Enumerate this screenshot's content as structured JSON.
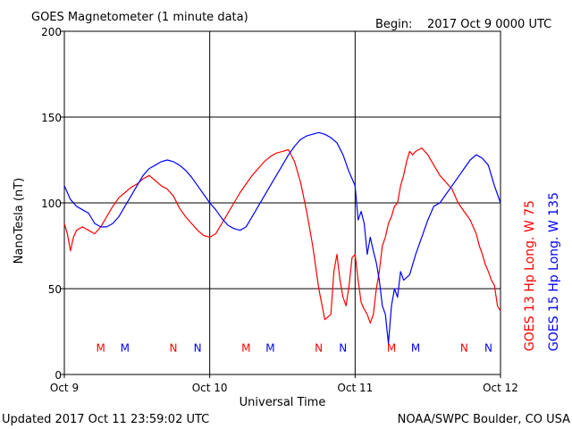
{
  "header": {
    "title": "GOES Magnetometer (1 minute data)",
    "begin_label": "Begin:",
    "begin_value": "2017 Oct 9 0000 UTC"
  },
  "footer": {
    "updated": "Updated 2017 Oct 11 23:59:02 UTC",
    "credit": "NOAA/SWPC Boulder, CO USA"
  },
  "chart_data": {
    "type": "line",
    "title": "GOES Magnetometer (1 minute data)",
    "xlabel": "Universal Time",
    "ylabel": "NanoTesla (nT)",
    "xlim": [
      0,
      72
    ],
    "ylim": [
      0,
      200
    ],
    "x_unit": "hours since 2017 Oct 9 0000 UTC",
    "x_ticks": [
      {
        "x": 0,
        "label": "Oct 9"
      },
      {
        "x": 24,
        "label": "Oct 10"
      },
      {
        "x": 48,
        "label": "Oct 11"
      },
      {
        "x": 72,
        "label": "Oct 12"
      }
    ],
    "y_ticks": [
      0,
      50,
      100,
      150,
      200
    ],
    "grid": true,
    "colors": {
      "goes13": "#ff0000",
      "goes15": "#0000ff",
      "grid": "#000000"
    },
    "series": [
      {
        "name": "GOES 13 Hp Long. W 75",
        "color": "#ff0000",
        "x": [
          0,
          0.5,
          1,
          1.5,
          2,
          3,
          4,
          5,
          6,
          7,
          8,
          9,
          10,
          11,
          12,
          13,
          14,
          15,
          16,
          17,
          18,
          19,
          20,
          21,
          22,
          23,
          24,
          25,
          26,
          27,
          28,
          29,
          30,
          31,
          32,
          33,
          34,
          35,
          36,
          37,
          38,
          39,
          40,
          41,
          42,
          43,
          44,
          44.5,
          45,
          45.5,
          46,
          46.5,
          47,
          47.5,
          48,
          48.5,
          49,
          49.5,
          50,
          50.5,
          51,
          51.5,
          52,
          52.5,
          53,
          53.5,
          54,
          54.5,
          55,
          55.5,
          56,
          56.5,
          57,
          57.5,
          58,
          59,
          60,
          61,
          62,
          63,
          64,
          65,
          66,
          67,
          68,
          68.5,
          69,
          69.5,
          70,
          70.5,
          71,
          71.5,
          72
        ],
        "y": [
          88,
          82,
          72,
          80,
          84,
          86,
          84,
          82,
          86,
          92,
          98,
          103,
          106,
          109,
          111,
          114,
          116,
          113,
          110,
          108,
          104,
          97,
          92,
          88,
          84,
          81,
          80,
          82,
          88,
          94,
          100,
          106,
          111,
          116,
          120,
          124,
          127,
          129,
          130,
          131,
          124,
          112,
          95,
          75,
          50,
          32,
          35,
          60,
          70,
          55,
          45,
          40,
          52,
          68,
          70,
          55,
          42,
          38,
          35,
          30,
          35,
          50,
          60,
          75,
          80,
          88,
          92,
          98,
          100,
          110,
          116,
          124,
          130,
          128,
          130,
          132,
          128,
          122,
          116,
          112,
          108,
          100,
          95,
          90,
          82,
          75,
          70,
          64,
          60,
          55,
          52,
          40,
          37
        ],
        "marker_labels": [
          {
            "x": 6,
            "label": "M"
          },
          {
            "x": 18,
            "label": "N"
          },
          {
            "x": 30,
            "label": "M"
          },
          {
            "x": 42,
            "label": "N"
          },
          {
            "x": 54,
            "label": "M"
          },
          {
            "x": 66,
            "label": "N"
          }
        ]
      },
      {
        "name": "GOES 15 Hp Long. W 135",
        "color": "#0000ff",
        "x": [
          0,
          1,
          2,
          3,
          4,
          5,
          6,
          7,
          8,
          9,
          10,
          11,
          12,
          13,
          14,
          15,
          16,
          17,
          18,
          19,
          20,
          21,
          22,
          23,
          24,
          25,
          26,
          27,
          28,
          29,
          30,
          31,
          32,
          33,
          34,
          35,
          36,
          37,
          38,
          39,
          40,
          41,
          42,
          43,
          44,
          45,
          46,
          47,
          48,
          48.5,
          49,
          49.5,
          50,
          50.5,
          51,
          51.5,
          52,
          52.5,
          53,
          53.5,
          54,
          54.5,
          55,
          55.5,
          56,
          57,
          58,
          59,
          60,
          61,
          62,
          63,
          64,
          65,
          66,
          67,
          68,
          69,
          70,
          71,
          72
        ],
        "y": [
          110,
          102,
          98,
          96,
          94,
          88,
          86,
          86,
          88,
          92,
          98,
          104,
          110,
          116,
          120,
          122,
          124,
          125,
          124,
          122,
          119,
          115,
          110,
          105,
          100,
          96,
          91,
          87,
          85,
          84,
          86,
          92,
          98,
          104,
          110,
          116,
          122,
          128,
          133,
          137,
          139,
          140,
          141,
          140,
          138,
          135,
          128,
          118,
          110,
          90,
          95,
          88,
          70,
          80,
          72,
          65,
          55,
          40,
          35,
          18,
          40,
          50,
          45,
          60,
          55,
          58,
          70,
          80,
          90,
          98,
          100,
          105,
          110,
          115,
          120,
          125,
          128,
          126,
          122,
          110,
          100
        ],
        "marker_labels": [
          {
            "x": 10,
            "label": "M"
          },
          {
            "x": 22,
            "label": "N"
          },
          {
            "x": 34,
            "label": "M"
          },
          {
            "x": 46,
            "label": "N"
          },
          {
            "x": 58,
            "label": "M"
          },
          {
            "x": 70,
            "label": "N"
          }
        ]
      }
    ]
  }
}
